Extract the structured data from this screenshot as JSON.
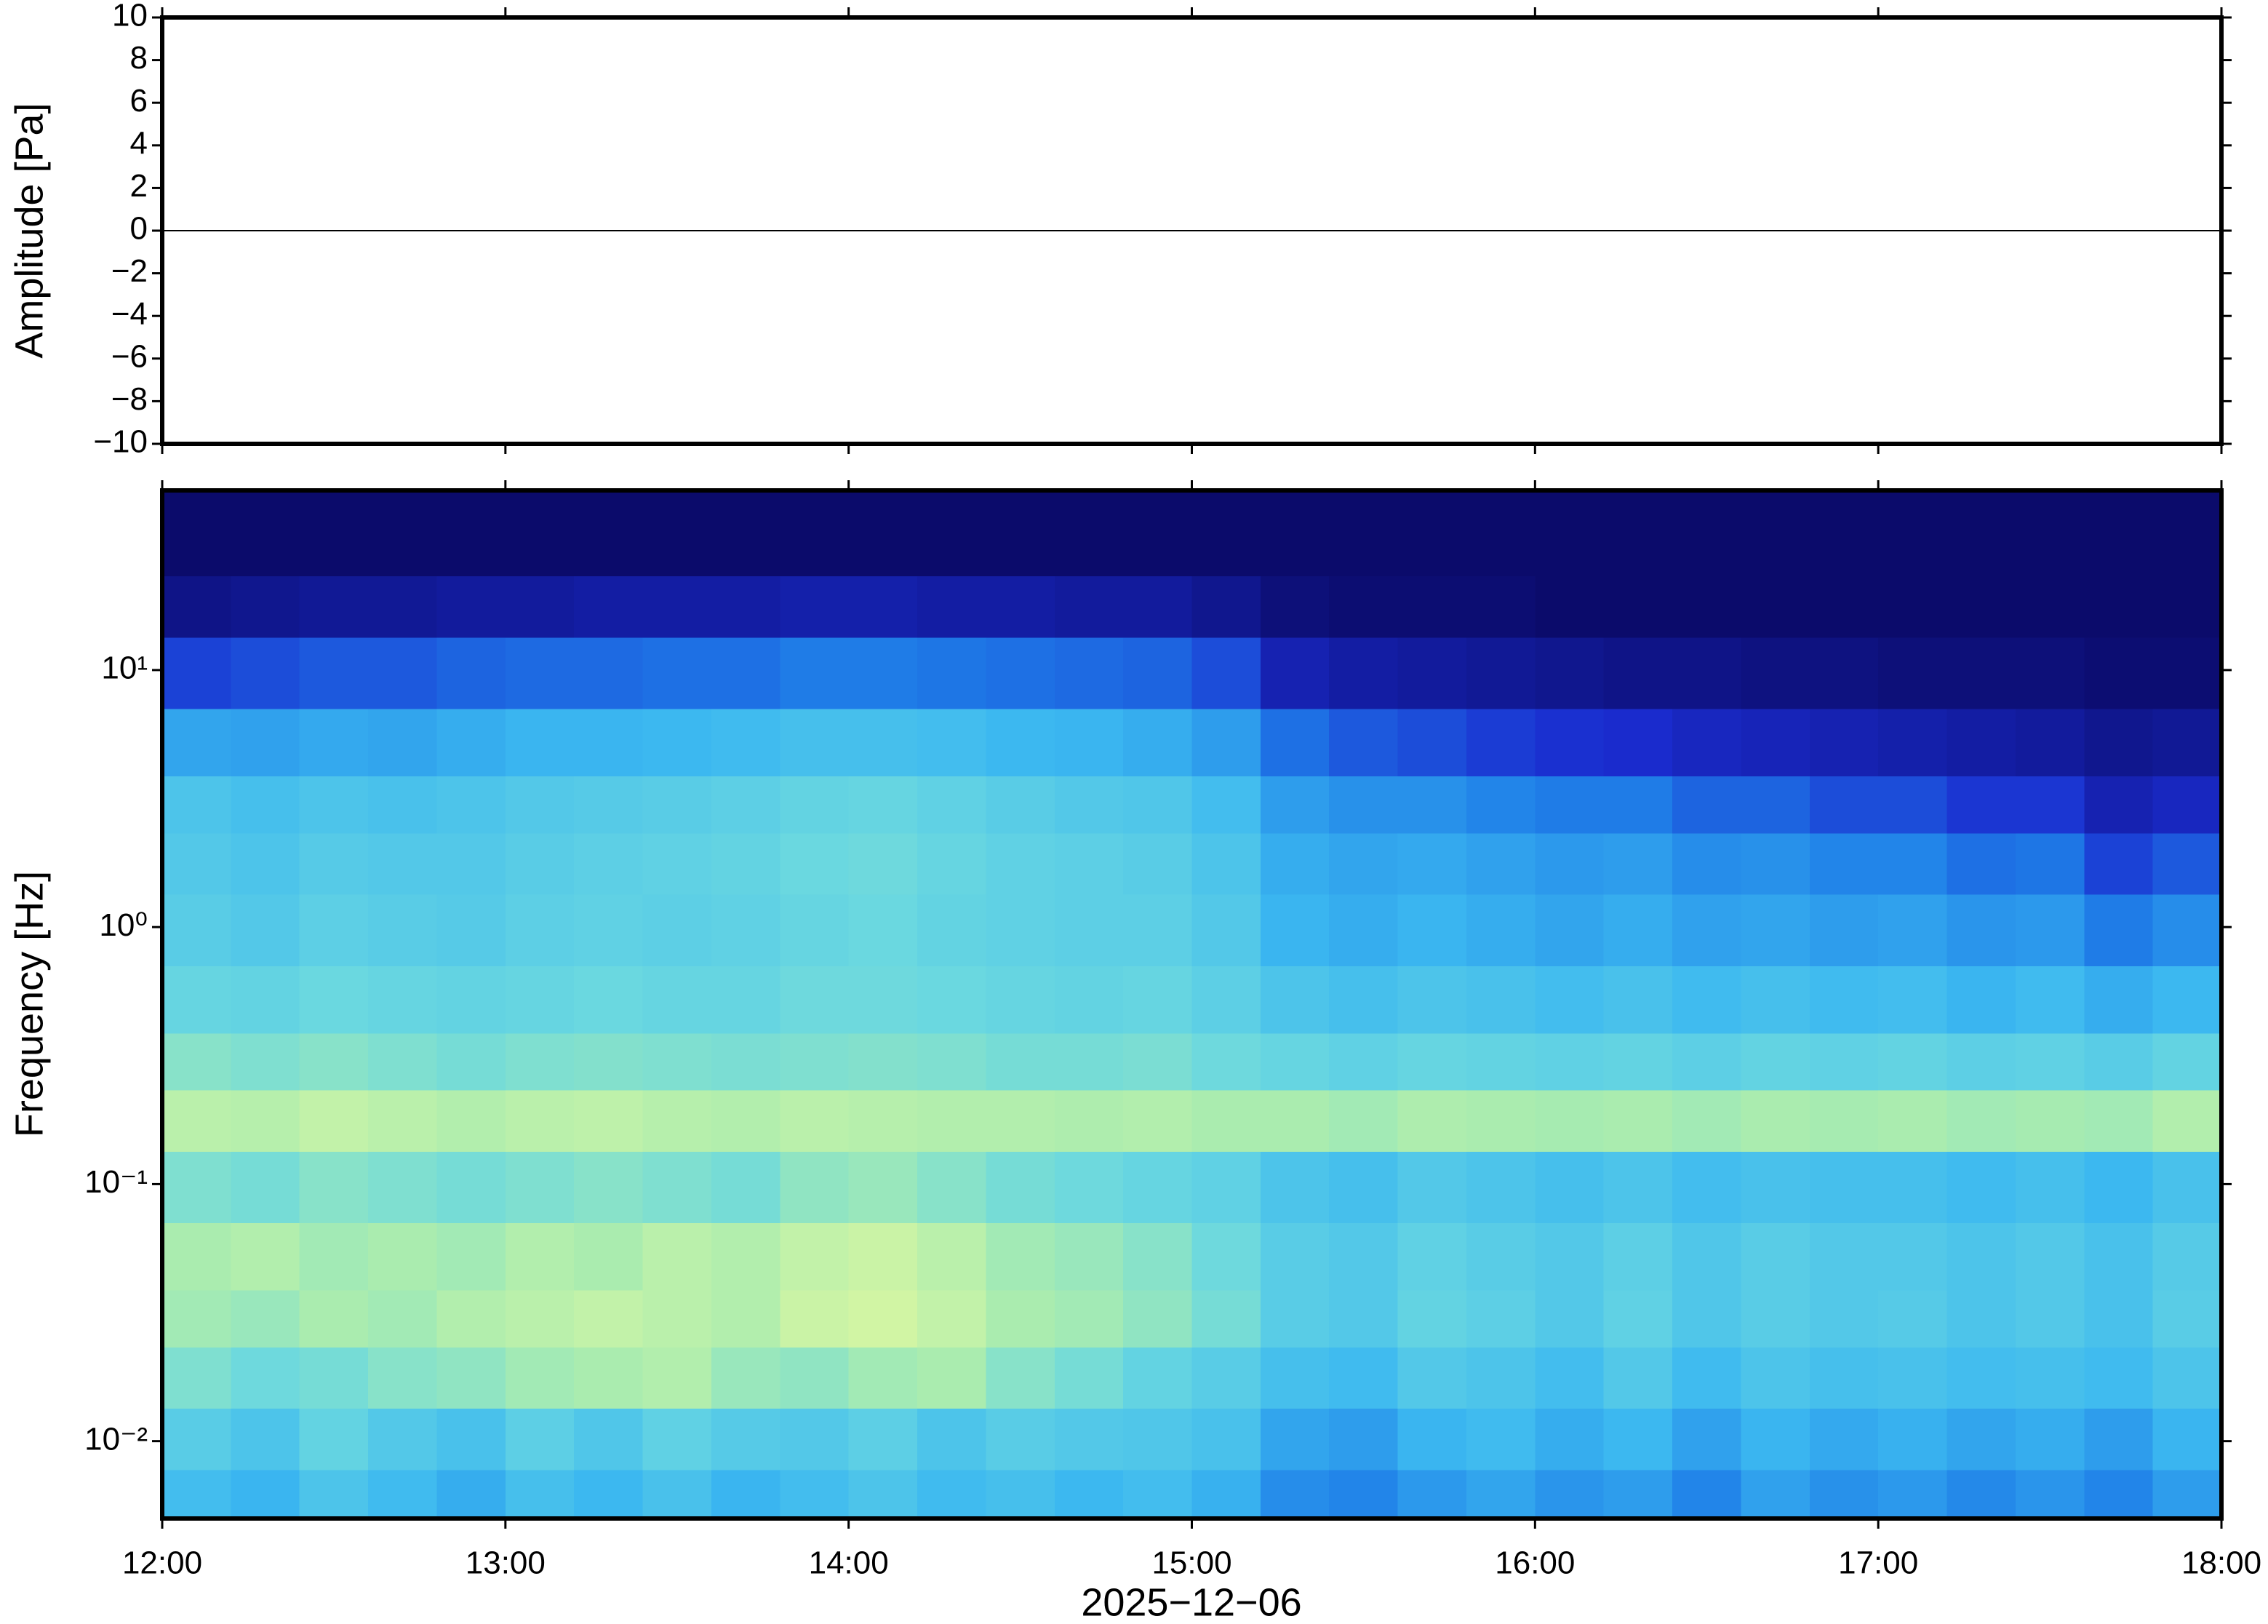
{
  "chart_data": [
    {
      "type": "line",
      "ylabel": "Amplitude [Pa]",
      "x": [
        12,
        18
      ],
      "values": [
        0,
        0
      ],
      "color": "#000000",
      "xlim": [
        12,
        18
      ],
      "ylim": [
        -10,
        10
      ],
      "yticks": [
        {
          "value": -10,
          "label": "−10"
        },
        {
          "value": -8,
          "label": "−8"
        },
        {
          "value": -6,
          "label": "−6"
        },
        {
          "value": -4,
          "label": "−4"
        },
        {
          "value": -2,
          "label": "−2"
        },
        0,
        2,
        4,
        6,
        8,
        10
      ]
    },
    {
      "type": "heatmap",
      "ylabel": "Frequency [Hz]",
      "xlabel": "2025−12−06",
      "xlim": [
        12,
        18
      ],
      "ylim": [
        0.005,
        50
      ],
      "ylog": true,
      "xticks": [
        {
          "value": 12,
          "label": "12:00"
        },
        {
          "value": 13,
          "label": "13:00"
        },
        {
          "value": 14,
          "label": "14:00"
        },
        {
          "value": 15,
          "label": "15:00"
        },
        {
          "value": 16,
          "label": "16:00"
        },
        {
          "value": 17,
          "label": "17:00"
        },
        {
          "value": 18,
          "label": "18:00"
        }
      ],
      "yticks": [
        {
          "value": 0.01,
          "label": "10⁻²"
        },
        {
          "value": 0.1,
          "label": "10⁻¹"
        },
        {
          "value": 1,
          "label": "10⁰"
        },
        {
          "value": 10,
          "label": "10¹"
        }
      ],
      "colormap": [
        "#0b0b6b",
        "#1a2ccf",
        "#1f7fe8",
        "#3cb8f0",
        "#6ad8e0",
        "#a8ecb0",
        "#e0f8a0",
        "#f5f07a"
      ],
      "x": [
        12.1,
        12.3,
        12.5,
        12.7,
        12.9,
        13.1,
        13.3,
        13.5,
        13.7,
        13.9,
        14.1,
        14.3,
        14.5,
        14.7,
        14.9,
        15.1,
        15.3,
        15.5,
        15.7,
        15.9,
        16.1,
        16.3,
        16.5,
        16.7,
        16.9,
        17.1,
        17.3,
        17.5,
        17.7,
        17.9
      ],
      "y": [
        0.006,
        0.01,
        0.018,
        0.03,
        0.05,
        0.1,
        0.18,
        0.3,
        0.5,
        1,
        1.8,
        3,
        5,
        10,
        18,
        30
      ],
      "values": [
        [
          0.45,
          0.42,
          0.48,
          0.44,
          0.4,
          0.46,
          0.43,
          0.47,
          0.42,
          0.45,
          0.48,
          0.44,
          0.46,
          0.43,
          0.45,
          0.41,
          0.32,
          0.3,
          0.35,
          0.38,
          0.34,
          0.36,
          0.3,
          0.37,
          0.33,
          0.35,
          0.31,
          0.34,
          0.3,
          0.36
        ],
        [
          0.52,
          0.48,
          0.55,
          0.5,
          0.47,
          0.53,
          0.49,
          0.54,
          0.51,
          0.5,
          0.53,
          0.48,
          0.52,
          0.5,
          0.49,
          0.47,
          0.38,
          0.36,
          0.42,
          0.44,
          0.4,
          0.43,
          0.37,
          0.42,
          0.39,
          0.41,
          0.38,
          0.4,
          0.36,
          0.42
        ],
        [
          0.62,
          0.58,
          0.6,
          0.64,
          0.66,
          0.7,
          0.72,
          0.74,
          0.68,
          0.66,
          0.7,
          0.72,
          0.64,
          0.6,
          0.55,
          0.52,
          0.46,
          0.44,
          0.5,
          0.48,
          0.45,
          0.5,
          0.44,
          0.48,
          0.46,
          0.47,
          0.45,
          0.46,
          0.44,
          0.48
        ],
        [
          0.7,
          0.68,
          0.72,
          0.7,
          0.74,
          0.76,
          0.78,
          0.76,
          0.74,
          0.8,
          0.82,
          0.78,
          0.72,
          0.7,
          0.66,
          0.6,
          0.52,
          0.5,
          0.55,
          0.53,
          0.5,
          0.54,
          0.49,
          0.52,
          0.5,
          0.51,
          0.48,
          0.5,
          0.47,
          0.52
        ],
        [
          0.72,
          0.74,
          0.7,
          0.72,
          0.7,
          0.74,
          0.72,
          0.76,
          0.74,
          0.78,
          0.8,
          0.76,
          0.7,
          0.68,
          0.64,
          0.58,
          0.52,
          0.5,
          0.54,
          0.52,
          0.5,
          0.53,
          0.49,
          0.52,
          0.5,
          0.5,
          0.48,
          0.5,
          0.47,
          0.51
        ],
        [
          0.62,
          0.6,
          0.64,
          0.62,
          0.6,
          0.62,
          0.64,
          0.62,
          0.6,
          0.66,
          0.68,
          0.64,
          0.6,
          0.58,
          0.56,
          0.54,
          0.48,
          0.46,
          0.5,
          0.48,
          0.46,
          0.48,
          0.45,
          0.47,
          0.46,
          0.46,
          0.44,
          0.46,
          0.43,
          0.47
        ],
        [
          0.76,
          0.75,
          0.78,
          0.76,
          0.74,
          0.76,
          0.77,
          0.75,
          0.74,
          0.76,
          0.75,
          0.74,
          0.74,
          0.73,
          0.74,
          0.72,
          0.72,
          0.7,
          0.73,
          0.72,
          0.71,
          0.72,
          0.7,
          0.72,
          0.71,
          0.72,
          0.7,
          0.71,
          0.7,
          0.74
        ],
        [
          0.64,
          0.62,
          0.64,
          0.62,
          0.6,
          0.62,
          0.63,
          0.62,
          0.61,
          0.62,
          0.63,
          0.62,
          0.6,
          0.6,
          0.61,
          0.58,
          0.56,
          0.54,
          0.56,
          0.55,
          0.54,
          0.55,
          0.53,
          0.55,
          0.54,
          0.55,
          0.53,
          0.54,
          0.52,
          0.55
        ],
        [
          0.56,
          0.55,
          0.57,
          0.56,
          0.55,
          0.56,
          0.57,
          0.56,
          0.56,
          0.58,
          0.58,
          0.57,
          0.56,
          0.55,
          0.56,
          0.53,
          0.48,
          0.46,
          0.48,
          0.47,
          0.45,
          0.47,
          0.44,
          0.46,
          0.44,
          0.45,
          0.42,
          0.44,
          0.4,
          0.43
        ],
        [
          0.52,
          0.5,
          0.53,
          0.52,
          0.51,
          0.53,
          0.54,
          0.53,
          0.54,
          0.56,
          0.57,
          0.55,
          0.54,
          0.53,
          0.53,
          0.5,
          0.42,
          0.4,
          0.42,
          0.4,
          0.38,
          0.4,
          0.37,
          0.38,
          0.36,
          0.37,
          0.34,
          0.35,
          0.28,
          0.32
        ],
        [
          0.5,
          0.48,
          0.51,
          0.5,
          0.5,
          0.52,
          0.53,
          0.54,
          0.55,
          0.57,
          0.58,
          0.56,
          0.54,
          0.53,
          0.52,
          0.48,
          0.4,
          0.38,
          0.39,
          0.37,
          0.35,
          0.36,
          0.32,
          0.33,
          0.3,
          0.3,
          0.26,
          0.27,
          0.18,
          0.22
        ],
        [
          0.48,
          0.46,
          0.48,
          0.47,
          0.48,
          0.5,
          0.51,
          0.52,
          0.53,
          0.55,
          0.56,
          0.54,
          0.52,
          0.5,
          0.49,
          0.45,
          0.36,
          0.33,
          0.33,
          0.3,
          0.28,
          0.28,
          0.24,
          0.24,
          0.2,
          0.2,
          0.16,
          0.16,
          0.1,
          0.12
        ],
        [
          0.38,
          0.37,
          0.39,
          0.38,
          0.4,
          0.42,
          0.42,
          0.43,
          0.44,
          0.46,
          0.46,
          0.45,
          0.43,
          0.42,
          0.4,
          0.36,
          0.26,
          0.22,
          0.2,
          0.17,
          0.15,
          0.14,
          0.12,
          0.11,
          0.1,
          0.09,
          0.08,
          0.07,
          0.05,
          0.06
        ],
        [
          0.18,
          0.2,
          0.22,
          0.22,
          0.24,
          0.25,
          0.25,
          0.26,
          0.26,
          0.28,
          0.28,
          0.27,
          0.26,
          0.25,
          0.24,
          0.2,
          0.1,
          0.08,
          0.07,
          0.06,
          0.05,
          0.04,
          0.04,
          0.03,
          0.03,
          0.02,
          0.02,
          0.02,
          0.01,
          0.01
        ],
        [
          0.04,
          0.05,
          0.06,
          0.06,
          0.07,
          0.07,
          0.08,
          0.08,
          0.08,
          0.09,
          0.09,
          0.08,
          0.08,
          0.07,
          0.07,
          0.05,
          0.02,
          0.01,
          0.01,
          0.01,
          0,
          0,
          0,
          0,
          0,
          0,
          0,
          0,
          0,
          0
        ],
        [
          0,
          0,
          0,
          0,
          0,
          0,
          0,
          0,
          0,
          0,
          0,
          0,
          0,
          0,
          0,
          0,
          0,
          0,
          0,
          0,
          0,
          0,
          0,
          0,
          0,
          0,
          0,
          0,
          0,
          0
        ]
      ]
    }
  ]
}
